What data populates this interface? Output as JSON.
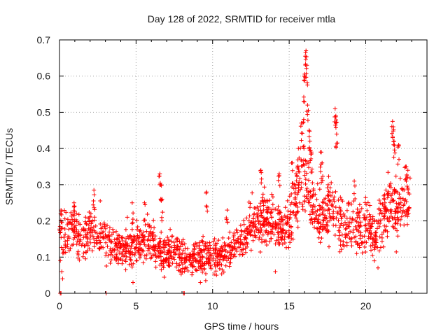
{
  "chart_data": {
    "type": "scatter",
    "title": "Day 128 of 2022, SRMTID for receiver mtla",
    "xlabel": "GPS time / hours",
    "ylabel": "SRMTID / TECUs",
    "xlim": [
      0,
      24
    ],
    "ylim": [
      0,
      0.7
    ],
    "xticks": [
      0,
      5,
      10,
      15,
      20
    ],
    "yticks": [
      0,
      0.1,
      0.2,
      0.3,
      0.4,
      0.5,
      0.6,
      0.7
    ],
    "grid": true,
    "marker": "+",
    "color": "#ff0000",
    "series": [
      {
        "name": "SRMTID",
        "profile": [
          [
            0.0,
            0.15
          ],
          [
            0.5,
            0.16
          ],
          [
            1.0,
            0.19
          ],
          [
            1.5,
            0.14
          ],
          [
            2.0,
            0.17
          ],
          [
            2.5,
            0.17
          ],
          [
            3.0,
            0.15
          ],
          [
            3.5,
            0.13
          ],
          [
            4.0,
            0.12
          ],
          [
            4.5,
            0.14
          ],
          [
            5.0,
            0.13
          ],
          [
            5.5,
            0.14
          ],
          [
            6.0,
            0.15
          ],
          [
            6.5,
            0.12
          ],
          [
            7.0,
            0.1
          ],
          [
            7.5,
            0.12
          ],
          [
            8.0,
            0.11
          ],
          [
            8.5,
            0.09
          ],
          [
            9.0,
            0.1
          ],
          [
            9.5,
            0.1
          ],
          [
            10.0,
            0.11
          ],
          [
            10.5,
            0.1
          ],
          [
            11.0,
            0.12
          ],
          [
            11.5,
            0.14
          ],
          [
            12.0,
            0.15
          ],
          [
            12.5,
            0.18
          ],
          [
            13.0,
            0.2
          ],
          [
            13.5,
            0.21
          ],
          [
            14.0,
            0.2
          ],
          [
            14.5,
            0.17
          ],
          [
            15.0,
            0.19
          ],
          [
            15.5,
            0.27
          ],
          [
            16.0,
            0.33
          ],
          [
            16.5,
            0.25
          ],
          [
            17.0,
            0.2
          ],
          [
            17.5,
            0.22
          ],
          [
            18.0,
            0.24
          ],
          [
            18.5,
            0.18
          ],
          [
            19.0,
            0.19
          ],
          [
            19.5,
            0.18
          ],
          [
            20.0,
            0.2
          ],
          [
            20.5,
            0.17
          ],
          [
            21.0,
            0.19
          ],
          [
            21.5,
            0.24
          ],
          [
            22.0,
            0.22
          ],
          [
            22.5,
            0.24
          ],
          [
            22.9,
            0.22
          ]
        ],
        "spikes": [
          [
            0.1,
            0.23
          ],
          [
            0.95,
            0.25
          ],
          [
            2.25,
            0.285
          ],
          [
            4.75,
            0.25
          ],
          [
            5.55,
            0.25
          ],
          [
            6.55,
            0.33
          ],
          [
            6.6,
            0.3
          ],
          [
            6.7,
            0.26
          ],
          [
            9.6,
            0.28
          ],
          [
            10.95,
            0.23
          ],
          [
            13.15,
            0.34
          ],
          [
            14.35,
            0.33
          ],
          [
            15.2,
            0.36
          ],
          [
            15.45,
            0.33
          ],
          [
            15.6,
            0.4
          ],
          [
            15.8,
            0.47
          ],
          [
            15.95,
            0.53
          ],
          [
            16.0,
            0.6
          ],
          [
            16.05,
            0.655
          ],
          [
            16.1,
            0.67
          ],
          [
            16.15,
            0.63
          ],
          [
            16.2,
            0.52
          ],
          [
            16.3,
            0.45
          ],
          [
            16.35,
            0.42
          ],
          [
            17.05,
            0.39
          ],
          [
            17.15,
            0.36
          ],
          [
            18.0,
            0.51
          ],
          [
            18.05,
            0.49
          ],
          [
            18.1,
            0.44
          ],
          [
            19.25,
            0.31
          ],
          [
            21.75,
            0.475
          ],
          [
            21.8,
            0.46
          ],
          [
            21.85,
            0.42
          ],
          [
            22.15,
            0.41
          ],
          [
            22.6,
            0.35
          ],
          [
            22.75,
            0.34
          ],
          [
            16.45,
            0.39
          ],
          [
            17.55,
            0.3
          ]
        ],
        "dips": [
          [
            0.05,
            0.0
          ],
          [
            0.1,
            0.0
          ],
          [
            3.05,
            0.0
          ],
          [
            8.1,
            0.0
          ],
          [
            8.15,
            0.0
          ],
          [
            0.15,
            0.06
          ],
          [
            0.2,
            0.04
          ],
          [
            4.8,
            0.03
          ],
          [
            9.2,
            0.03
          ],
          [
            9.55,
            0.035
          ],
          [
            10.25,
            0.05
          ],
          [
            14.1,
            0.06
          ],
          [
            20.8,
            0.07
          ]
        ]
      }
    ]
  }
}
